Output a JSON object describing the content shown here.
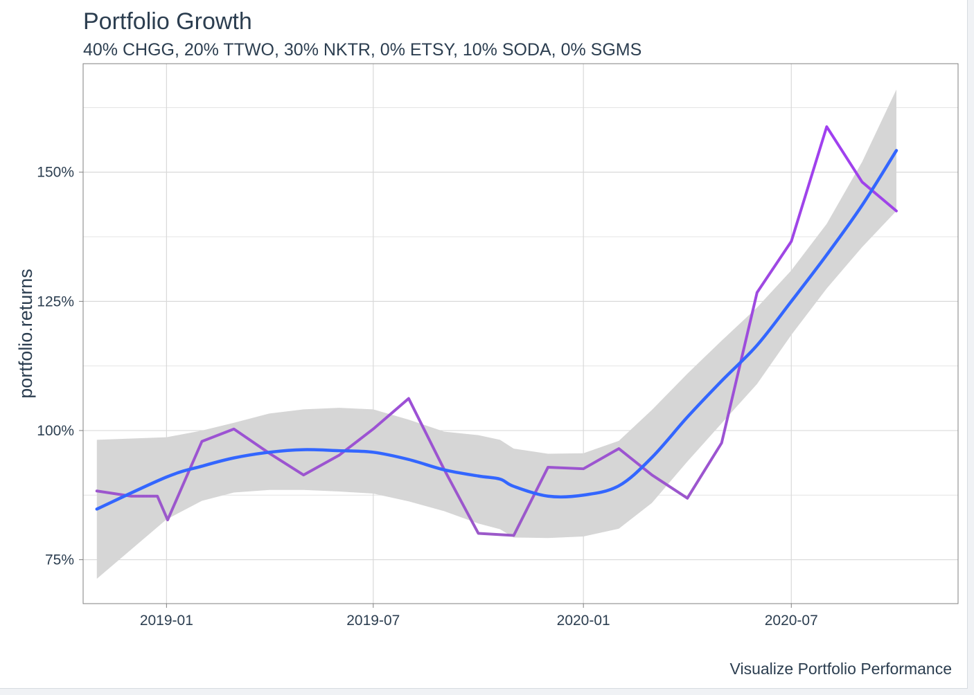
{
  "chart_data": {
    "type": "line",
    "title": "Portfolio Growth",
    "subtitle": "40% CHGG, 20% TTWO, 30% NKTR, 0% ETSY, 10% SODA, 0% SGMS",
    "caption": "Visualize Portfolio Performance",
    "xlabel": "",
    "ylabel": "portfolio.returns",
    "x_axis": {
      "range": [
        "2018-10-20",
        "2020-11-24"
      ],
      "ticks": [
        "2019-01-01",
        "2019-07-01",
        "2020-01-01",
        "2020-07-01"
      ],
      "tick_labels": [
        "2019-01",
        "2019-07",
        "2020-01",
        "2020-07"
      ]
    },
    "y_axis": {
      "range": [
        66.5,
        171
      ],
      "ticks": [
        75,
        100,
        125,
        150
      ],
      "tick_labels": [
        "75%",
        "100%",
        "125%",
        "150%"
      ],
      "minor_ticks": [
        87.5,
        112.5,
        137.5,
        162.5
      ]
    },
    "grid": true,
    "legend": "none",
    "colors": {
      "line_low": "#9b59c9",
      "line_high": "#a03ff0",
      "smooth": "#3366ff",
      "band": "#d6d6d6",
      "grid": "#d9d9d9",
      "panel_border": "#7f7f7f"
    },
    "series": [
      {
        "x": [
          "2018-11-01",
          "2018-12-01",
          "2018-12-24",
          "2019-01-02",
          "2019-02-01",
          "2019-03-01",
          "2019-04-01",
          "2019-05-01",
          "2019-06-01",
          "2019-07-01",
          "2019-08-01",
          "2019-09-01",
          "2019-10-01",
          "2019-11-01",
          "2019-12-01",
          "2020-01-01",
          "2020-02-01",
          "2020-03-01",
          "2020-04-01",
          "2020-05-01",
          "2020-06-01",
          "2020-07-01",
          "2020-08-01",
          "2020-09-01",
          "2020-10-01"
        ],
        "values": [
          88.3,
          87.3,
          87.3,
          82.7,
          97.9,
          100.3,
          95.6,
          91.4,
          95.2,
          100.3,
          106.2,
          92.5,
          80.1,
          79.7,
          92.9,
          92.6,
          96.5,
          91.4,
          86.9,
          97.6,
          126.7,
          136.6,
          158.8,
          148.1,
          142.5
        ]
      }
    ],
    "smooth": {
      "x": [
        "2018-11-01",
        "2019-01-01",
        "2019-02-01",
        "2019-03-01",
        "2019-04-01",
        "2019-05-01",
        "2019-06-01",
        "2019-07-01",
        "2019-08-01",
        "2019-09-01",
        "2019-10-01",
        "2019-10-20",
        "2019-11-01",
        "2019-12-01",
        "2020-01-01",
        "2020-02-01",
        "2020-03-01",
        "2020-04-01",
        "2020-05-01",
        "2020-06-01",
        "2020-07-01",
        "2020-08-01",
        "2020-09-01",
        "2020-10-01"
      ],
      "values": [
        84.8,
        91.0,
        93.1,
        94.7,
        95.8,
        96.3,
        96.1,
        95.8,
        94.4,
        92.4,
        91.2,
        90.6,
        89.2,
        87.3,
        87.5,
        89.3,
        94.8,
        102.6,
        109.6,
        116.5,
        125.0,
        134.0,
        143.6,
        154.2
      ],
      "upper": [
        98.2,
        98.7,
        100.0,
        101.5,
        103.3,
        104.1,
        104.4,
        104.1,
        102.1,
        99.8,
        99.1,
        98.2,
        96.5,
        95.5,
        95.6,
        98.0,
        104.0,
        111.0,
        117.4,
        123.8,
        131.0,
        140.0,
        152.0,
        166.0
      ],
      "lower": [
        71.3,
        82.8,
        86.4,
        88.0,
        88.5,
        88.5,
        88.2,
        87.8,
        86.3,
        84.4,
        82.0,
        80.9,
        79.3,
        79.2,
        79.5,
        81.0,
        86.0,
        94.0,
        101.4,
        109.0,
        118.5,
        127.5,
        135.5,
        142.5
      ]
    }
  }
}
